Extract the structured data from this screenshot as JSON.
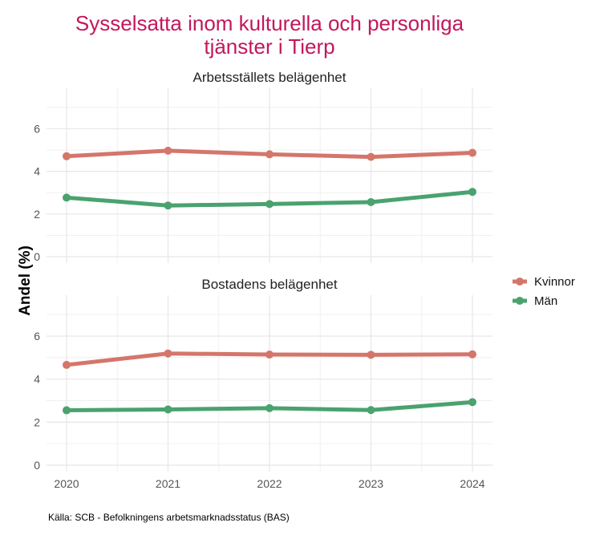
{
  "chart_data": {
    "type": "line",
    "title_lines": [
      "Sysselsatta inom kulturella och personliga",
      "tjänster i Tierp"
    ],
    "ylabel": "Andel (%)",
    "xlabel": "",
    "caption": "Källa: SCB - Befolkningens arbetsmarknadsstatus (BAS)",
    "x": [
      2020,
      2021,
      2022,
      2023,
      2024
    ],
    "x_tick_labels": [
      "2020",
      "2021",
      "2022",
      "2023",
      "2024"
    ],
    "y_ticks": [
      0,
      2,
      4,
      6
    ],
    "y_tick_labels": [
      "0",
      "2",
      "4",
      "6"
    ],
    "ylim": [
      -0.3,
      7.9
    ],
    "grid": true,
    "legend": {
      "placement": "right",
      "entries": [
        "Kvinnor",
        "Män"
      ]
    },
    "colors": {
      "Kvinnor": "#d4766a",
      "Män": "#4aa26f",
      "title": "#c2185b"
    },
    "panels": [
      {
        "title": "Arbetsställets belägenhet",
        "series": [
          {
            "name": "Kvinnor",
            "values": [
              4.71,
              4.97,
              4.8,
              4.68,
              4.87
            ]
          },
          {
            "name": "Män",
            "values": [
              2.77,
              2.4,
              2.47,
              2.56,
              3.04
            ]
          }
        ]
      },
      {
        "title": "Bostadens belägenhet",
        "series": [
          {
            "name": "Kvinnor",
            "values": [
              4.66,
              5.19,
              5.14,
              5.13,
              5.15
            ]
          },
          {
            "name": "Män",
            "values": [
              2.55,
              2.59,
              2.65,
              2.56,
              2.93
            ]
          }
        ]
      }
    ]
  }
}
